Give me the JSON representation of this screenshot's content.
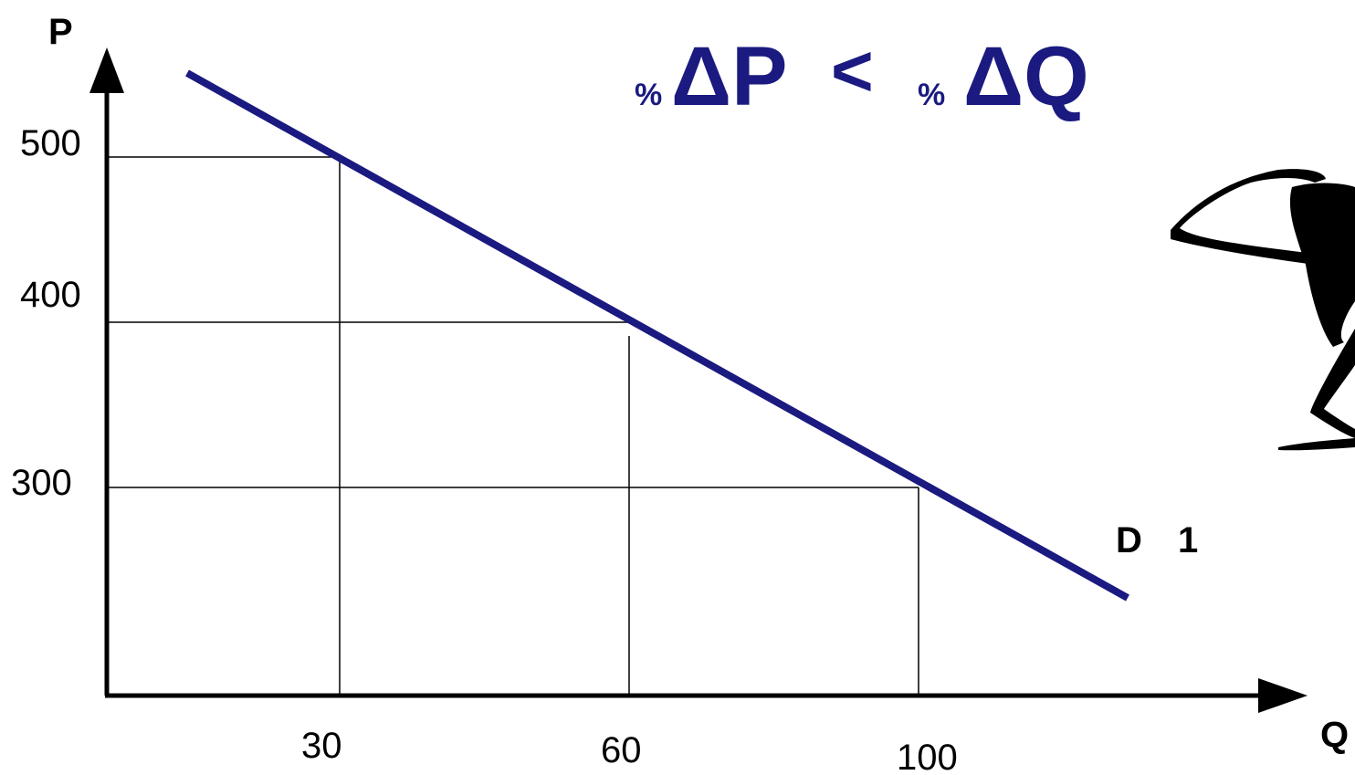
{
  "axes": {
    "y_label": "P",
    "x_label": "Q"
  },
  "price_labels": [
    "500",
    "400",
    "300"
  ],
  "quantity_labels": [
    "30",
    "60",
    "100"
  ],
  "formula": {
    "left_percent": "%",
    "left": "ΔP",
    "relation": "<",
    "right_percent": "%",
    "right": "ΔQ"
  },
  "curve_label": {
    "main": "D",
    "subscript": "1"
  }
}
